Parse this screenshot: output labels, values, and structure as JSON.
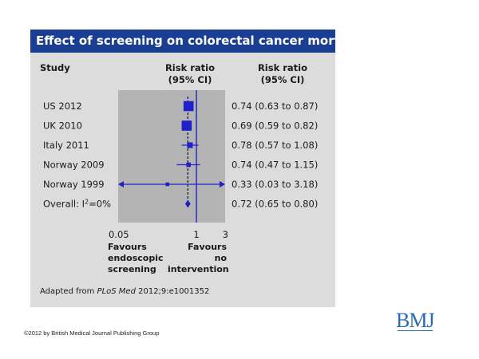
{
  "chart_data": {
    "type": "forest",
    "title": "Effect of screening on colorectal cancer mortality",
    "column_headers": {
      "study": "Study",
      "plot": [
        "Risk ratio",
        "(95% CI)"
      ],
      "values": [
        "Risk ratio",
        "(95% CI)"
      ]
    },
    "scale": "log",
    "xlim": [
      0.05,
      3
    ],
    "xticks": [
      "0.05",
      "1",
      "3"
    ],
    "reference_line": 1,
    "rows": [
      {
        "study": "US 2012",
        "rr": 0.74,
        "lo": 0.63,
        "hi": 0.87,
        "ci_text": "0.74 (0.63 to 0.87)",
        "weight": 3.0
      },
      {
        "study": "UK 2010",
        "rr": 0.69,
        "lo": 0.59,
        "hi": 0.82,
        "ci_text": "0.69 (0.59 to 0.82)",
        "weight": 3.0
      },
      {
        "study": "Italy 2011",
        "rr": 0.78,
        "lo": 0.57,
        "hi": 1.08,
        "ci_text": "0.78 (0.57 to 1.08)",
        "weight": 1.3
      },
      {
        "study": "Norway 2009",
        "rr": 0.74,
        "lo": 0.47,
        "hi": 1.15,
        "ci_text": "0.74 (0.47 to 1.15)",
        "weight": 0.8
      },
      {
        "study": "Norway 1999",
        "rr": 0.33,
        "lo": 0.03,
        "hi": 3.18,
        "ci_text": "0.33 (0.03 to 3.18)",
        "weight": 0.5
      }
    ],
    "overall": {
      "label_prefix": "Overall: I",
      "label_sup": "2",
      "label_suffix": "=0%",
      "rr": 0.72,
      "lo": 0.65,
      "hi": 0.8,
      "ci_text": "0.72 (0.65 to 0.80)"
    },
    "favours_left": [
      "Favours",
      "endoscopic",
      "screening"
    ],
    "favours_right": [
      "Favours",
      "no",
      "intervention"
    ],
    "source_prefix": "Adapted from ",
    "source_journal": "PLoS Med",
    "source_suffix": " 2012;9:e1001352",
    "colors": {
      "title_bar": "#1a3f92",
      "marker": "#2020c8",
      "plot_bg": "#b4b4b4",
      "panel_bg": "#dcdcdc"
    }
  },
  "footer": {
    "copyright": "©2012 by British Medical Journal Publishing Group",
    "logo": "BMJ"
  }
}
